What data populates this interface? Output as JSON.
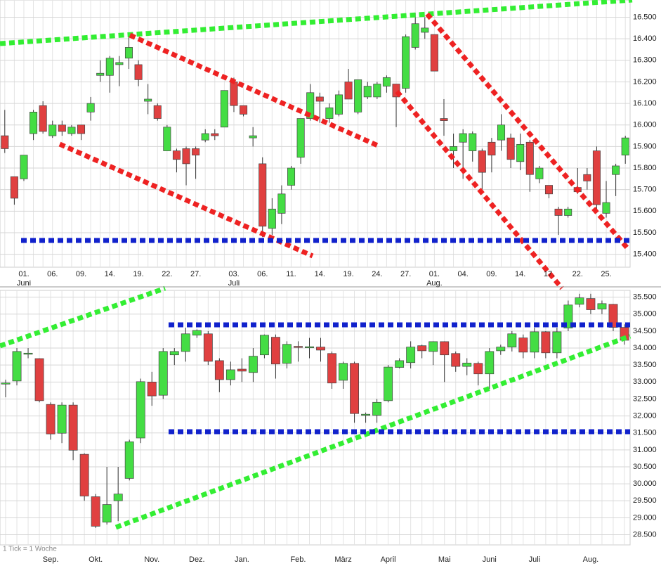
{
  "chart_data": [
    {
      "type": "candlestick",
      "up_color": "#44dd44",
      "down_color": "#e04040",
      "grid": true,
      "categories": [
        null,
        null,
        "01.",
        null,
        null,
        "06.",
        null,
        null,
        "09.",
        null,
        null,
        "14.",
        null,
        null,
        "19.",
        null,
        null,
        "22.",
        null,
        null,
        "27.",
        null,
        null,
        null,
        "03.",
        null,
        null,
        "06.",
        null,
        null,
        "11.",
        null,
        null,
        "14.",
        null,
        null,
        "19.",
        null,
        null,
        "24.",
        null,
        null,
        "27.",
        null,
        null,
        "01.",
        null,
        null,
        "04.",
        null,
        null,
        "09.",
        null,
        null,
        "14.",
        null,
        null,
        "17.",
        null,
        null,
        "22.",
        null,
        null,
        "25.",
        null,
        null
      ],
      "months": [
        null,
        null,
        "Juni",
        null,
        null,
        null,
        null,
        null,
        null,
        null,
        null,
        null,
        null,
        null,
        null,
        null,
        null,
        null,
        null,
        null,
        null,
        null,
        null,
        null,
        "Juli",
        null,
        null,
        null,
        null,
        null,
        null,
        null,
        null,
        null,
        null,
        null,
        null,
        null,
        null,
        null,
        null,
        null,
        null,
        null,
        null,
        "Aug.",
        null,
        null,
        null,
        null,
        null,
        null,
        null,
        null,
        null,
        null,
        null,
        null,
        null,
        null,
        null,
        null,
        null,
        null,
        null,
        null
      ],
      "open": [
        15950,
        15760,
        15750,
        15960,
        16090,
        15950,
        16000,
        15960,
        16000,
        16060,
        16230,
        16230,
        16280,
        16310,
        16280,
        16110,
        16090,
        15880,
        15880,
        15890,
        15890,
        15930,
        15960,
        15990,
        16200,
        16090,
        15940,
        15820,
        15520,
        15590,
        15720,
        15850,
        16030,
        16130,
        16030,
        16050,
        16200,
        16060,
        16130,
        16130,
        16180,
        16190,
        16170,
        16360,
        16430,
        16420,
        16030,
        15880,
        15920,
        15880,
        15880,
        15920,
        15930,
        15940,
        15830,
        15920,
        15750,
        15720,
        15610,
        15580,
        15710,
        15770,
        15880,
        15590,
        15770,
        15860
      ],
      "high": [
        16070,
        15760,
        15860,
        16070,
        16110,
        16020,
        16020,
        16000,
        16000,
        16130,
        16300,
        16320,
        16320,
        16420,
        16300,
        16190,
        16100,
        16000,
        15890,
        15900,
        15900,
        15980,
        15980,
        16160,
        16220,
        16090,
        15990,
        15850,
        15660,
        15720,
        15810,
        16030,
        16190,
        16150,
        16100,
        16160,
        16260,
        16210,
        16200,
        16200,
        16230,
        16190,
        16420,
        16520,
        16500,
        16420,
        16120,
        15960,
        15980,
        15970,
        15890,
        15940,
        16050,
        15960,
        15960,
        15930,
        15810,
        15720,
        15620,
        15620,
        15800,
        15800,
        15900,
        15740,
        15820,
        15950
      ],
      "low": [
        15870,
        15630,
        15740,
        15930,
        15960,
        15940,
        15950,
        15950,
        15930,
        16020,
        16200,
        16150,
        16180,
        16260,
        16180,
        16050,
        16020,
        15880,
        15780,
        15720,
        15750,
        15920,
        15930,
        15990,
        16060,
        16040,
        15900,
        15480,
        15490,
        15540,
        15700,
        15820,
        16020,
        16010,
        16010,
        16040,
        16120,
        16050,
        16120,
        16120,
        16150,
        15990,
        16150,
        16350,
        16400,
        16250,
        15950,
        15800,
        15750,
        15830,
        15700,
        15780,
        15880,
        15800,
        15790,
        15690,
        15730,
        15660,
        15490,
        15570,
        15680,
        15700,
        15600,
        15570,
        15670,
        15820
      ],
      "close": [
        15890,
        15660,
        15860,
        16060,
        15970,
        16000,
        15970,
        15990,
        15960,
        16100,
        16240,
        16310,
        16290,
        16360,
        16210,
        16120,
        16030,
        15990,
        15840,
        15820,
        15860,
        15960,
        15950,
        16160,
        16090,
        16050,
        15950,
        15530,
        15610,
        15680,
        15800,
        16030,
        16150,
        16110,
        16080,
        16140,
        16120,
        16210,
        16180,
        16190,
        16220,
        16130,
        16410,
        16470,
        16450,
        16250,
        16020,
        15900,
        15960,
        15960,
        15780,
        15860,
        16000,
        15840,
        15910,
        15770,
        15800,
        15680,
        15580,
        15610,
        15690,
        15740,
        15630,
        15640,
        15810,
        15940
      ],
      "ylim": [
        15340,
        16580
      ],
      "yticks": [
        {
          "value": 15400,
          "label": "15.400"
        },
        {
          "value": 15500,
          "label": "15.500"
        },
        {
          "value": 15600,
          "label": "15.600"
        },
        {
          "value": 15700,
          "label": "15.700"
        },
        {
          "value": 15800,
          "label": "15.800"
        },
        {
          "value": 15900,
          "label": "15.900"
        },
        {
          "value": 16000,
          "label": "16.000"
        },
        {
          "value": 16100,
          "label": "16.100"
        },
        {
          "value": 16200,
          "label": "16.200"
        },
        {
          "value": 16300,
          "label": "16.300"
        },
        {
          "value": 16400,
          "label": "16.400"
        },
        {
          "value": 16500,
          "label": "16.500"
        }
      ]
    },
    {
      "type": "candlestick",
      "up_color": "#44dd44",
      "down_color": "#e04040",
      "grid": true,
      "note": "1 Tick = 1 Woche",
      "months": [
        null,
        null,
        null,
        null,
        "Sep.",
        null,
        null,
        null,
        "Okt.",
        null,
        null,
        null,
        null,
        "Nov.",
        null,
        null,
        null,
        "Dez.",
        null,
        null,
        null,
        "Jan.",
        null,
        null,
        null,
        null,
        "Feb.",
        null,
        null,
        null,
        "März",
        null,
        null,
        null,
        "April",
        null,
        null,
        null,
        null,
        "Mai",
        null,
        null,
        null,
        "Juni",
        null,
        null,
        null,
        "Juli",
        null,
        null,
        null,
        null,
        "Aug.",
        null,
        null,
        null
      ],
      "open": [
        32950,
        33030,
        33840,
        33690,
        32340,
        31490,
        32320,
        30870,
        29620,
        28870,
        29500,
        30160,
        31350,
        33000,
        32610,
        33800,
        33900,
        34380,
        34420,
        33630,
        33070,
        33380,
        33280,
        33800,
        34320,
        33550,
        34050,
        34030,
        34030,
        33840,
        33050,
        33550,
        32030,
        32020,
        32450,
        33430,
        33570,
        34070,
        33900,
        34190,
        33840,
        33460,
        33550,
        33240,
        33920,
        34030,
        34300,
        33880,
        34480,
        33860,
        34590,
        35290,
        35460,
        35150,
        35290,
        34610
      ],
      "high": [
        33070,
        34000,
        34000,
        33700,
        32400,
        32400,
        32400,
        30900,
        29700,
        30500,
        30500,
        31300,
        33100,
        33300,
        34000,
        34000,
        34600,
        34550,
        34500,
        33700,
        33600,
        33700,
        34000,
        34400,
        34400,
        34200,
        34200,
        34300,
        34300,
        33900,
        33600,
        33600,
        32100,
        32500,
        33500,
        33700,
        34200,
        34100,
        34200,
        34200,
        33900,
        33700,
        33600,
        34000,
        34100,
        34500,
        34400,
        34600,
        34500,
        34600,
        35400,
        35600,
        35600,
        35400,
        35300,
        34700
      ],
      "low": [
        32550,
        32900,
        33700,
        32400,
        31300,
        31200,
        30700,
        29500,
        28700,
        28800,
        28900,
        30100,
        31200,
        32300,
        32500,
        33500,
        33600,
        34300,
        33500,
        32700,
        32900,
        33000,
        33000,
        33700,
        33100,
        33400,
        33600,
        33700,
        33600,
        32800,
        32800,
        31800,
        31800,
        31800,
        32400,
        33400,
        33400,
        33700,
        33500,
        33000,
        33300,
        33200,
        32900,
        32800,
        33800,
        33900,
        33700,
        33700,
        33700,
        33700,
        34500,
        35200,
        35000,
        35000,
        34500,
        34100
      ],
      "close": [
        32970,
        33900,
        33850,
        32450,
        31470,
        32320,
        30990,
        29640,
        28750,
        29390,
        29700,
        31240,
        33010,
        32590,
        33900,
        33900,
        34420,
        34520,
        33610,
        33070,
        33360,
        33320,
        33760,
        34380,
        33530,
        34110,
        34040,
        34040,
        33940,
        32970,
        33550,
        32070,
        32050,
        32400,
        33440,
        33630,
        34030,
        33920,
        34190,
        33800,
        33460,
        33560,
        33240,
        33900,
        34030,
        34420,
        33880,
        34480,
        33860,
        34480,
        35270,
        35480,
        35130,
        35310,
        34610,
        34230
      ],
      "ylim": [
        28200,
        35700
      ],
      "yticks": [
        {
          "value": 28500,
          "label": "28.500"
        },
        {
          "value": 29000,
          "label": "29.000"
        },
        {
          "value": 29500,
          "label": "29.500"
        },
        {
          "value": 30000,
          "label": "30.000"
        },
        {
          "value": 30500,
          "label": "30.500"
        },
        {
          "value": 31000,
          "label": "31.000"
        },
        {
          "value": 31500,
          "label": "31.500"
        },
        {
          "value": 32000,
          "label": "32.000"
        },
        {
          "value": 32500,
          "label": "32.500"
        },
        {
          "value": 33000,
          "label": "33.000"
        },
        {
          "value": 33500,
          "label": "33.500"
        },
        {
          "value": 34000,
          "label": "34.000"
        },
        {
          "value": 34500,
          "label": "34.500"
        },
        {
          "value": 35000,
          "label": "35.000"
        },
        {
          "value": 35500,
          "label": "35.500"
        }
      ]
    }
  ]
}
